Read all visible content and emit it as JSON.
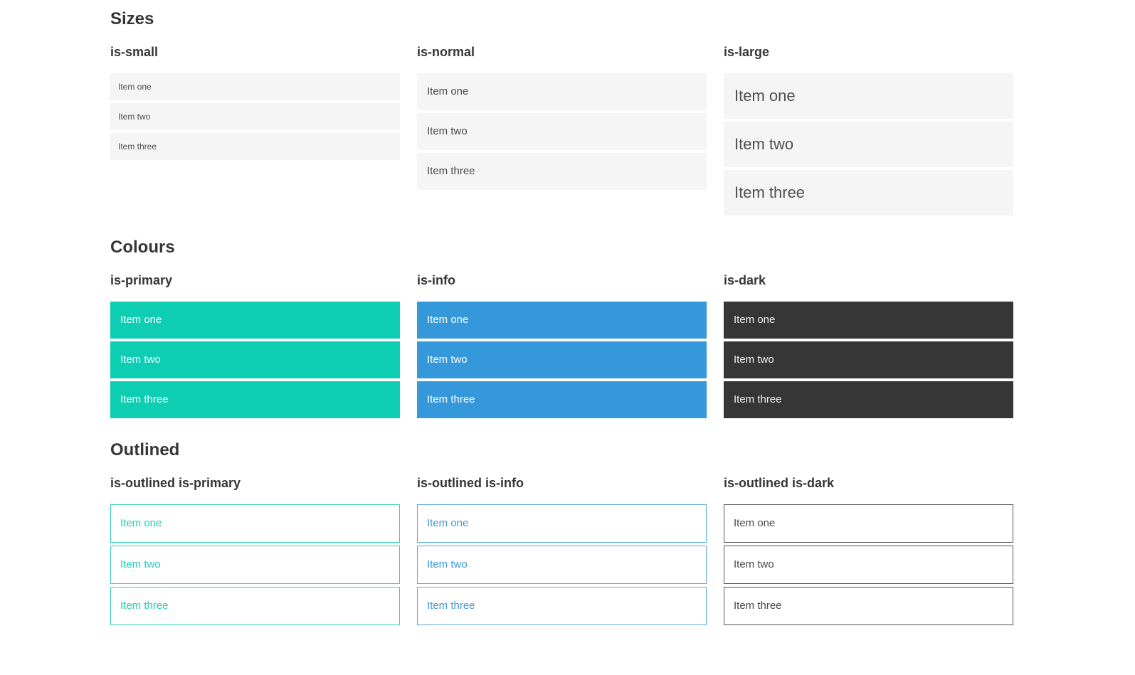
{
  "sections": [
    {
      "title": "Sizes",
      "groups": [
        {
          "label": "is-small",
          "items": [
            "Item one",
            "Item two",
            "Item three"
          ]
        },
        {
          "label": "is-normal",
          "items": [
            "Item one",
            "Item two",
            "Item three"
          ]
        },
        {
          "label": "is-large",
          "items": [
            "Item one",
            "Item two",
            "Item three"
          ]
        }
      ]
    },
    {
      "title": "Colours",
      "groups": [
        {
          "label": "is-primary",
          "items": [
            "Item one",
            "Item two",
            "Item three"
          ]
        },
        {
          "label": "is-info",
          "items": [
            "Item one",
            "Item two",
            "Item three"
          ]
        },
        {
          "label": "is-dark",
          "items": [
            "Item one",
            "Item two",
            "Item three"
          ]
        }
      ]
    },
    {
      "title": "Outlined",
      "groups": [
        {
          "label": "is-outlined is-primary",
          "items": [
            "Item one",
            "Item two",
            "Item three"
          ]
        },
        {
          "label": "is-outlined is-info",
          "items": [
            "Item one",
            "Item two",
            "Item three"
          ]
        },
        {
          "label": "is-outlined is-dark",
          "items": [
            "Item one",
            "Item two",
            "Item three"
          ]
        }
      ]
    }
  ],
  "colors": {
    "primary": "#0dcdb2",
    "info": "#3498db",
    "dark": "#363636",
    "item_light_bg": "#f5f5f5",
    "item_text": "#4a4a4a",
    "heading_text": "#363636",
    "on_color_text": "#ffffff"
  }
}
